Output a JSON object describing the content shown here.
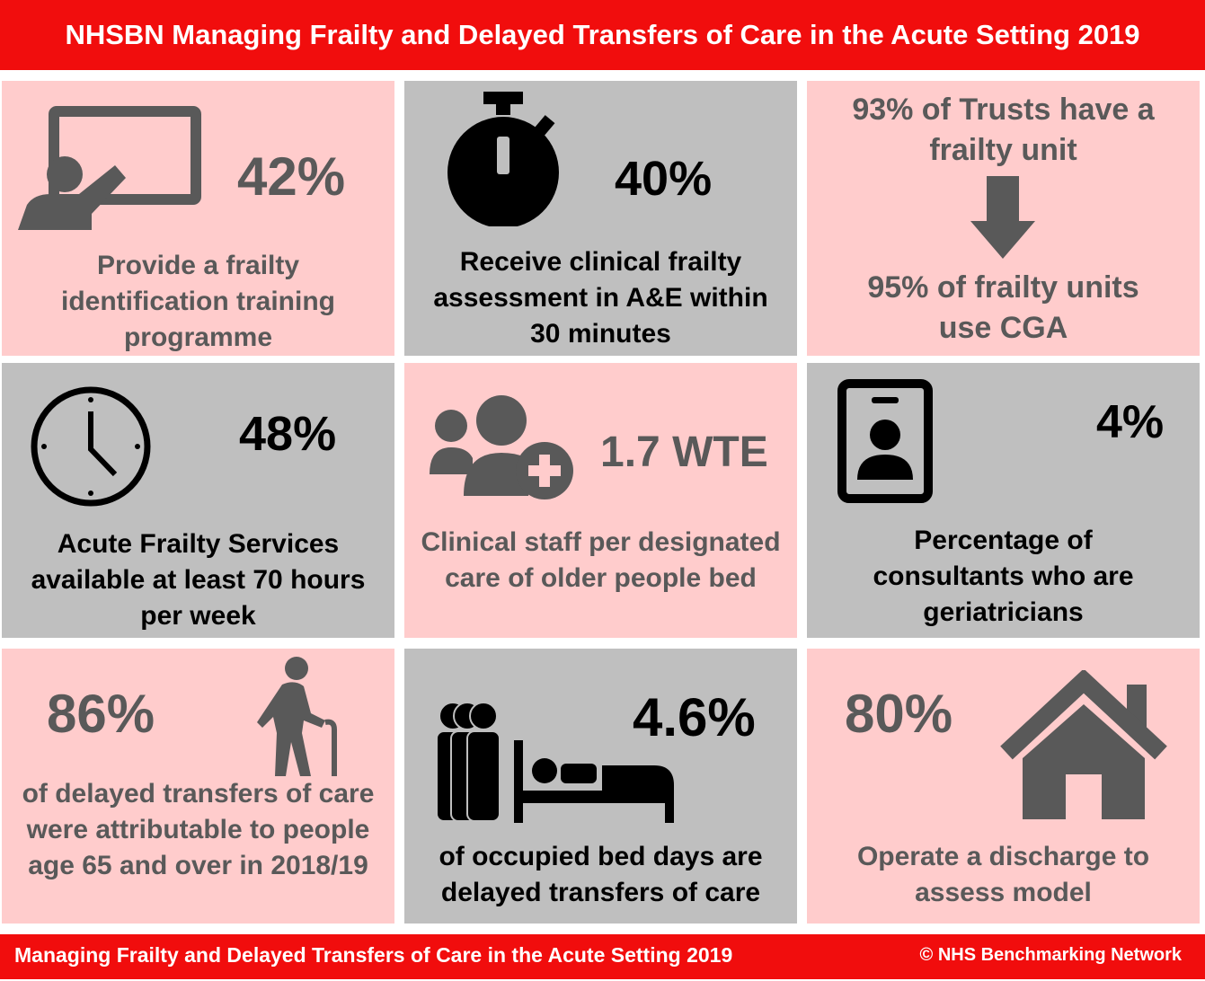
{
  "header": {
    "title": "NHSBN Managing Frailty and Delayed Transfers of Care in the Acute Setting 2019"
  },
  "tiles": [
    {
      "stat": "42%",
      "desc": "Provide a frailty identification training programme",
      "icon": "presentation-icon"
    },
    {
      "stat": "40%",
      "desc": "Receive clinical frailty assessment in A&E within 30 minutes",
      "icon": "stopwatch-icon"
    },
    {
      "top": "93% of Trusts have a frailty unit",
      "bottom": "95% of frailty units use CGA",
      "icon": "down-arrow-icon"
    },
    {
      "stat": "48%",
      "desc": "Acute Frailty Services available at least 70 hours per week",
      "icon": "clock-icon"
    },
    {
      "stat": "1.7 WTE",
      "desc": "Clinical staff per designated care of older people bed",
      "icon": "users-add-icon"
    },
    {
      "stat": "4%",
      "desc": "Percentage of consultants who are geriatricians",
      "icon": "id-badge-icon"
    },
    {
      "stat": "86%",
      "desc": "of delayed transfers of care were attributable to people age 65 and over in 2018/19",
      "icon": "elderly-person-icon"
    },
    {
      "stat": "4.6%",
      "desc": "of occupied bed days are delayed transfers of care",
      "icon": "patient-in-bed-icon"
    },
    {
      "stat": "80%",
      "desc": "Operate a discharge to assess model",
      "icon": "house-icon"
    }
  ],
  "colors": {
    "header": "#f10d0d",
    "pink": "#ffcccc",
    "grey": "#bfbfbf",
    "dark_grey": "#595959"
  },
  "footer": {
    "left": "Managing Frailty and Delayed Transfers of Care in the Acute Setting 2019",
    "right": "© NHS Benchmarking Network"
  }
}
